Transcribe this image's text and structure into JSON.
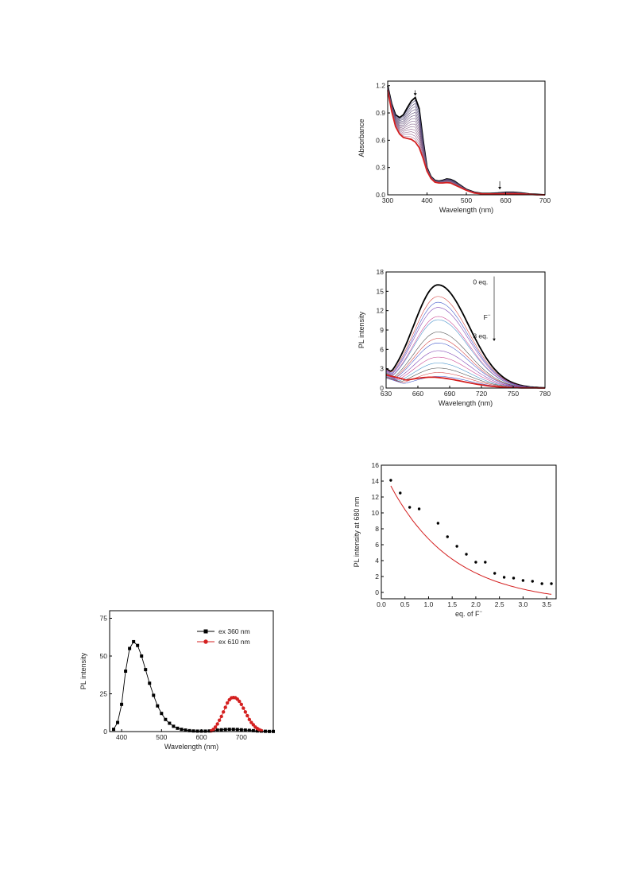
{
  "chart_data": [
    {
      "id": "abs",
      "type": "line",
      "xlabel": "Wavelength (nm)",
      "ylabel": "Absorbance",
      "xlim": [
        300,
        700
      ],
      "ylim": [
        0,
        1.25
      ],
      "xticks": [
        300,
        400,
        500,
        600,
        700
      ],
      "xtick_labels": [
        "300",
        "400",
        "500",
        "600",
        "700"
      ],
      "yticks": [
        0,
        0.3,
        0.6,
        0.9,
        1.2
      ],
      "ytick_labels": [
        "0.0",
        "0.3",
        "0.6",
        "0.9",
        "1.2"
      ],
      "grid": false,
      "annotations": [
        {
          "type": "arrow-down",
          "x": 370,
          "y_from": 1.15,
          "y_to": 1.09
        },
        {
          "type": "arrow-down",
          "x": 585,
          "y_from": 0.15,
          "y_to": 0.06
        }
      ],
      "curve_color_first": "#000000",
      "curve_color_last": "#d42020",
      "curve_count": 16,
      "x": [
        300,
        310,
        320,
        330,
        340,
        350,
        360,
        370,
        380,
        390,
        400,
        410,
        420,
        430,
        440,
        450,
        460,
        470,
        480,
        490,
        500,
        520,
        540,
        560,
        580,
        600,
        620,
        640,
        660,
        680,
        700
      ],
      "series_first": [
        1.2,
        1.0,
        0.88,
        0.85,
        0.88,
        0.96,
        1.03,
        1.07,
        0.95,
        0.6,
        0.3,
        0.2,
        0.16,
        0.15,
        0.16,
        0.175,
        0.17,
        0.15,
        0.12,
        0.09,
        0.06,
        0.03,
        0.015,
        0.015,
        0.02,
        0.028,
        0.028,
        0.02,
        0.01,
        0.005,
        0.0
      ],
      "series_last": [
        1.15,
        0.92,
        0.75,
        0.67,
        0.63,
        0.62,
        0.61,
        0.58,
        0.52,
        0.4,
        0.26,
        0.18,
        0.14,
        0.13,
        0.13,
        0.135,
        0.13,
        0.11,
        0.09,
        0.07,
        0.05,
        0.02,
        0.01,
        0.01,
        0.01,
        0.012,
        0.012,
        0.01,
        0.005,
        0.0,
        0.0
      ]
    },
    {
      "id": "pl",
      "type": "line",
      "xlabel": "Wavelength (nm)",
      "ylabel": "PL intensity",
      "xlim": [
        630,
        780
      ],
      "ylim": [
        0,
        18
      ],
      "xticks": [
        630,
        660,
        690,
        720,
        750,
        780
      ],
      "xtick_labels": [
        "630",
        "660",
        "690",
        "720",
        "750",
        "780"
      ],
      "yticks": [
        0,
        3,
        6,
        9,
        12,
        15,
        18
      ],
      "ytick_labels": [
        "0",
        "3",
        "6",
        "9",
        "12",
        "15",
        "18"
      ],
      "grid": false,
      "annotations": [
        {
          "text": "0 eq.",
          "x": 712,
          "y": 16.1
        },
        {
          "text": "F",
          "x": 722,
          "y": 10.6,
          "superscript": "−"
        },
        {
          "text": "8 eq.",
          "x": 712,
          "y": 7.7
        },
        {
          "type": "arrow-down",
          "x": 732,
          "y_from": 17.3,
          "y_to": 7.3
        }
      ],
      "peak_x": 679,
      "sigma_left": 23,
      "sigma_right": 29,
      "peaks": [
        16.0,
        14.2,
        13.3,
        12.5,
        11.1,
        10.6,
        8.7,
        7.7,
        7.0,
        5.8,
        4.8,
        3.9,
        3.1,
        2.4,
        1.8,
        1.2
      ],
      "curve_colors": [
        "#000000",
        "#d33c3c",
        "#3c53c8",
        "#7a3cb0",
        "#c83c8c",
        "#3c8cc8",
        "#444444",
        "#d33c3c",
        "#3c53c8",
        "#7a3cb0",
        "#c83c8c",
        "#3c8cc8",
        "#444444",
        "#d33c3c",
        "#3c53c8",
        "#d42020"
      ]
    },
    {
      "id": "fit",
      "type": "scatter",
      "xlabel": "eq. of F",
      "xlabel_superscript": "−",
      "ylabel": "PL intensity at 680 nm",
      "xlim": [
        0,
        3.7
      ],
      "ylim": [
        -0.8,
        16
      ],
      "xticks": [
        0,
        0.5,
        1.0,
        1.5,
        2.0,
        2.5,
        3.0,
        3.5
      ],
      "xtick_labels": [
        "0.0",
        "0.5",
        "1.0",
        "1.5",
        "2.0",
        "2.5",
        "3.0",
        "3.5"
      ],
      "yticks": [
        0,
        2,
        4,
        6,
        8,
        10,
        12,
        14,
        16
      ],
      "ytick_labels": [
        "0",
        "2",
        "4",
        "6",
        "8",
        "10",
        "12",
        "14",
        "16"
      ],
      "grid": false,
      "x": [
        0.2,
        0.4,
        0.6,
        0.8,
        1.2,
        1.4,
        1.6,
        1.8,
        2.0,
        2.2,
        2.4,
        2.6,
        2.8,
        3.0,
        3.2,
        3.4,
        3.6
      ],
      "y": [
        14.1,
        12.5,
        10.7,
        10.5,
        8.7,
        7.0,
        5.8,
        4.8,
        3.8,
        3.8,
        2.4,
        1.9,
        1.8,
        1.5,
        1.4,
        1.1,
        1.1
      ],
      "fit": {
        "a": 17.2,
        "k": 0.75,
        "c": -1.4
      },
      "fit_color": "#d42020",
      "point_color": "#000000"
    },
    {
      "id": "ex",
      "type": "line",
      "xlabel": "Wavelength (nm)",
      "ylabel": "PL intensity",
      "xlim": [
        370,
        780
      ],
      "ylim": [
        0,
        80
      ],
      "xticks": [
        400,
        500,
        600,
        700
      ],
      "xtick_labels": [
        "400",
        "500",
        "600",
        "700"
      ],
      "yticks": [
        0,
        25,
        50,
        75
      ],
      "ytick_labels": [
        "0",
        "25",
        "50",
        "75"
      ],
      "grid": false,
      "legend": "top-right",
      "series": [
        {
          "name": "ex 360 nm",
          "color": "#000000",
          "marker": "square",
          "x": [
            380,
            390,
            400,
            410,
            420,
            430,
            440,
            450,
            460,
            470,
            480,
            490,
            500,
            510,
            520,
            530,
            540,
            550,
            560,
            570,
            580,
            590,
            600,
            610,
            620,
            630,
            640,
            650,
            660,
            670,
            680,
            690,
            700,
            710,
            720,
            730,
            740,
            750,
            760,
            770,
            780
          ],
          "y": [
            1.5,
            6,
            18,
            40,
            55,
            59.5,
            57,
            50,
            41,
            32,
            24,
            17,
            12,
            8,
            5.5,
            3.5,
            2.2,
            1.5,
            1,
            0.6,
            0.4,
            0.3,
            0.3,
            0.3,
            0.4,
            0.7,
            1.0,
            1.2,
            1.4,
            1.5,
            1.5,
            1.4,
            1.2,
            1.0,
            0.8,
            0.6,
            0.4,
            0.3,
            0.2,
            0.1,
            0.1
          ]
        },
        {
          "name": "ex 610 nm",
          "color": "#d42020",
          "marker": "circle",
          "x": [
            625,
            630,
            635,
            640,
            645,
            650,
            655,
            660,
            665,
            670,
            675,
            680,
            685,
            690,
            695,
            700,
            705,
            710,
            715,
            720,
            725,
            730,
            735,
            740,
            745,
            750
          ],
          "y": [
            0.5,
            1.5,
            3,
            5,
            7.5,
            10,
            13,
            16,
            19,
            21,
            22.3,
            22.5,
            22.4,
            21.5,
            20,
            18,
            15.5,
            13,
            10.5,
            8,
            6,
            4.5,
            3,
            2,
            1.2,
            0.6
          ]
        }
      ]
    }
  ]
}
